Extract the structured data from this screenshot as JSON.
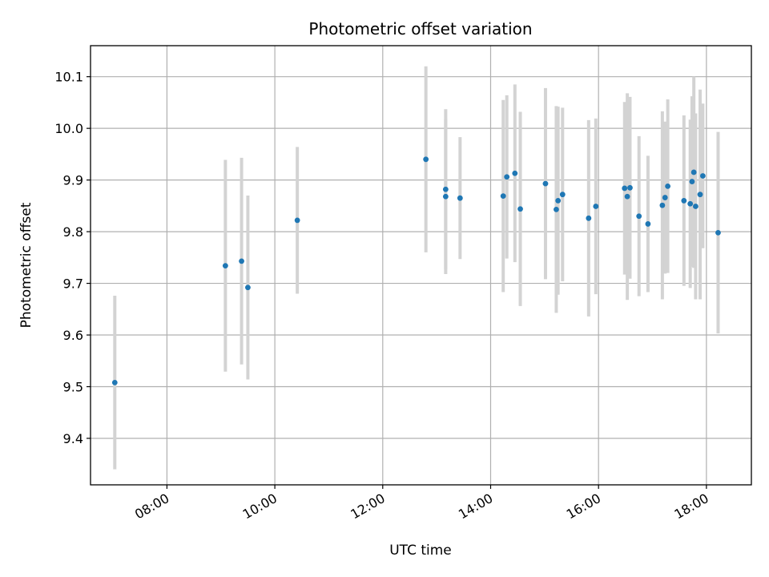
{
  "chart_data": {
    "type": "scatter",
    "title": "Photometric offset variation",
    "xlabel": "UTC time",
    "ylabel": "Photometric offset",
    "x_type": "time",
    "xlim": [
      "06:35",
      "18:50"
    ],
    "ylim": [
      9.31,
      10.16
    ],
    "x_ticks": [
      "08:00",
      "10:00",
      "12:00",
      "14:00",
      "16:00",
      "18:00"
    ],
    "y_ticks": [
      "9.4",
      "9.5",
      "9.6",
      "9.7",
      "9.8",
      "9.9",
      "10.0",
      "10.1"
    ],
    "grid": true,
    "marker_color": "#1f77b4",
    "errorbar_color": "#d3d3d3",
    "points": [
      {
        "x": "07:02",
        "y": 9.508,
        "err": 0.168
      },
      {
        "x": "09:05",
        "y": 9.734,
        "err": 0.205
      },
      {
        "x": "09:23",
        "y": 9.743,
        "err": 0.2
      },
      {
        "x": "09:30",
        "y": 9.692,
        "err": 0.178
      },
      {
        "x": "10:25",
        "y": 9.822,
        "err": 0.142
      },
      {
        "x": "12:48",
        "y": 9.94,
        "err": 0.18
      },
      {
        "x": "13:10",
        "y": 9.882,
        "err": 0.155
      },
      {
        "x": "13:10",
        "y": 9.868,
        "err": 0.15
      },
      {
        "x": "13:26",
        "y": 9.865,
        "err": 0.118
      },
      {
        "x": "14:14",
        "y": 9.869,
        "err": 0.186
      },
      {
        "x": "14:18",
        "y": 9.906,
        "err": 0.158
      },
      {
        "x": "14:27",
        "y": 9.913,
        "err": 0.172
      },
      {
        "x": "14:33",
        "y": 9.844,
        "err": 0.188
      },
      {
        "x": "15:01",
        "y": 9.893,
        "err": 0.185
      },
      {
        "x": "15:13",
        "y": 9.843,
        "err": 0.2
      },
      {
        "x": "15:15",
        "y": 9.86,
        "err": 0.182
      },
      {
        "x": "15:20",
        "y": 9.872,
        "err": 0.168
      },
      {
        "x": "15:49",
        "y": 9.826,
        "err": 0.19
      },
      {
        "x": "15:57",
        "y": 9.849,
        "err": 0.17
      },
      {
        "x": "16:29",
        "y": 9.884,
        "err": 0.167
      },
      {
        "x": "16:32",
        "y": 9.868,
        "err": 0.2
      },
      {
        "x": "16:35",
        "y": 9.885,
        "err": 0.176
      },
      {
        "x": "16:45",
        "y": 9.83,
        "err": 0.155
      },
      {
        "x": "16:55",
        "y": 9.815,
        "err": 0.132
      },
      {
        "x": "17:11",
        "y": 9.851,
        "err": 0.182
      },
      {
        "x": "17:14",
        "y": 9.866,
        "err": 0.147
      },
      {
        "x": "17:17",
        "y": 9.888,
        "err": 0.168
      },
      {
        "x": "17:35",
        "y": 9.86,
        "err": 0.165
      },
      {
        "x": "17:42",
        "y": 9.854,
        "err": 0.163
      },
      {
        "x": "17:44",
        "y": 9.897,
        "err": 0.165
      },
      {
        "x": "17:46",
        "y": 9.915,
        "err": 0.185
      },
      {
        "x": "17:48",
        "y": 9.849,
        "err": 0.18
      },
      {
        "x": "17:53",
        "y": 9.872,
        "err": 0.203
      },
      {
        "x": "17:56",
        "y": 9.908,
        "err": 0.14
      },
      {
        "x": "18:13",
        "y": 9.798,
        "err": 0.195
      }
    ]
  }
}
